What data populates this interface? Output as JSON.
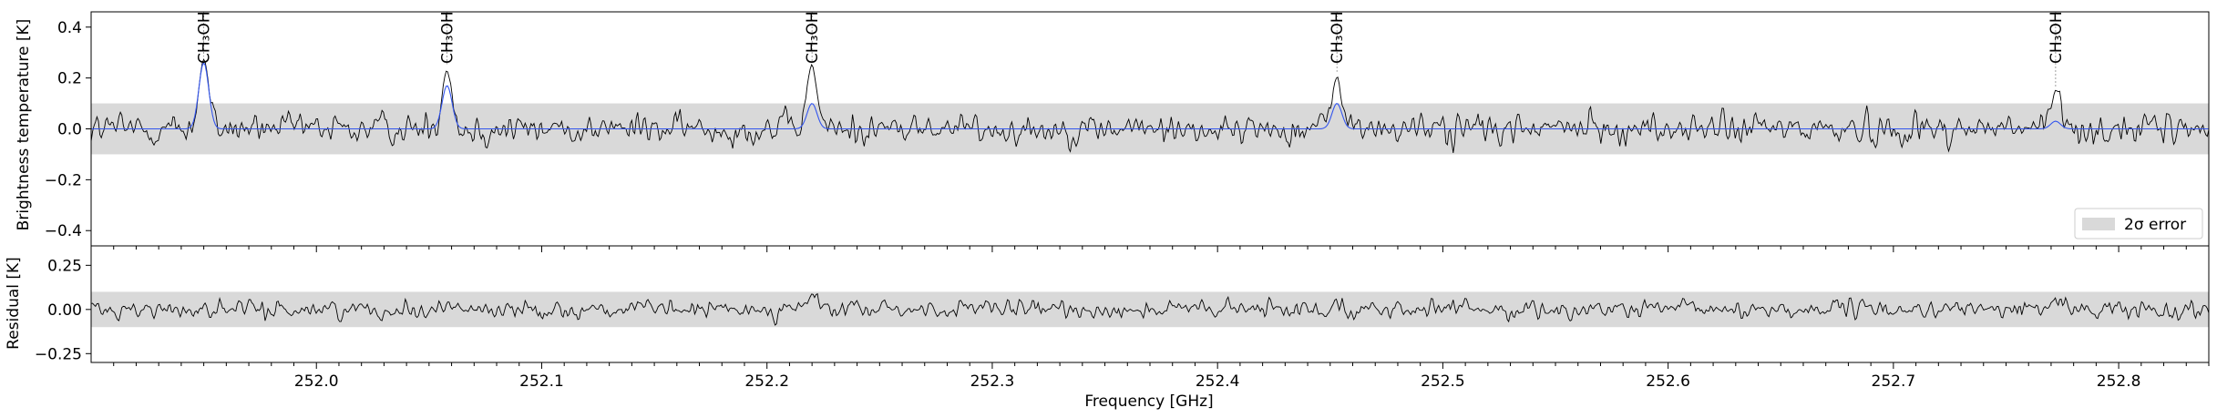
{
  "figure": {
    "top_ylabel": "Brightness temperature [K]",
    "bottom_ylabel": "Residual [K]",
    "xlabel": "Frequency [GHz]",
    "legend_label": "2σ error",
    "line_labels": [
      "CH₃OH",
      "CH₃OH",
      "CH₃OH",
      "CH₃OH",
      "CH₃OH"
    ]
  },
  "colors": {
    "spectrum": "#000000",
    "model": "#3355ee",
    "error_band": "#d9d9d9"
  },
  "chart_data": [
    {
      "type": "line",
      "panel": "spectrum",
      "ylabel": "Brightness temperature [K]",
      "xlim": [
        251.9,
        252.84
      ],
      "ylim": [
        -0.46,
        0.46
      ],
      "yticks": [
        -0.4,
        -0.2,
        0.0,
        0.2,
        0.4
      ],
      "ytick_labels": [
        "−0.4",
        "−0.2",
        "0.0",
        "0.2",
        "0.4"
      ],
      "error_band": [
        -0.1,
        0.1
      ],
      "legend": {
        "label": "2σ error",
        "placement": "lower-right"
      },
      "lines": [
        {
          "label": "CH₃OH",
          "frequency": 251.95,
          "observed_peak": 0.27,
          "model_peak": 0.26
        },
        {
          "label": "CH₃OH",
          "frequency": 252.058,
          "observed_peak": 0.24,
          "model_peak": 0.17
        },
        {
          "label": "CH₃OH",
          "frequency": 252.22,
          "observed_peak": 0.25,
          "model_peak": 0.1
        },
        {
          "label": "CH₃OH",
          "frequency": 252.453,
          "observed_peak": 0.21,
          "model_peak": 0.1
        },
        {
          "label": "CH₃OH",
          "frequency": 252.772,
          "observed_peak": 0.15,
          "model_peak": 0.03
        }
      ],
      "series": [
        {
          "role": "observed",
          "noise_rms": 0.05
        },
        {
          "role": "model"
        }
      ]
    },
    {
      "type": "line",
      "panel": "residual",
      "ylabel": "Residual [K]",
      "xlabel": "Frequency [GHz]",
      "xlim": [
        251.9,
        252.84
      ],
      "ylim": [
        -0.3,
        0.36
      ],
      "yticks": [
        -0.25,
        0.0,
        0.25
      ],
      "ytick_labels": [
        "−0.25",
        "0.00",
        "0.25"
      ],
      "xticks": [
        252.0,
        252.1,
        252.2,
        252.3,
        252.4,
        252.5,
        252.6,
        252.7,
        252.8
      ],
      "xtick_labels": [
        "252.0",
        "252.1",
        "252.2",
        "252.3",
        "252.4",
        "252.5",
        "252.6",
        "252.7",
        "252.8"
      ],
      "error_band": [
        -0.1,
        0.1
      ],
      "series": [
        {
          "role": "residual",
          "noise_rms": 0.05
        }
      ]
    }
  ]
}
